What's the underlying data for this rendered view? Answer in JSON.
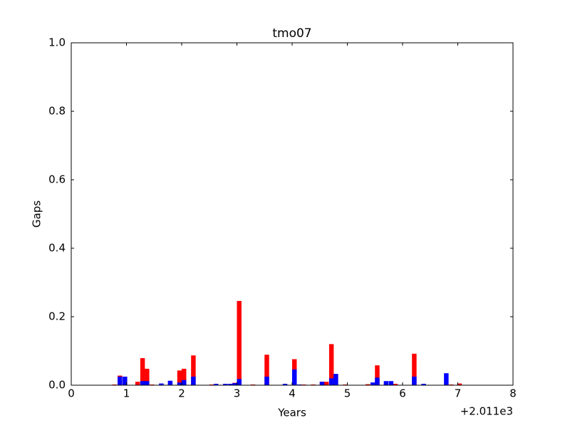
{
  "chart_data": {
    "type": "bar",
    "title": "tmo07",
    "xlabel": "Years",
    "ylabel": "Gaps",
    "x_offset_label": "+2.011e3",
    "x": [
      0.74,
      0.84,
      0.93,
      1.16,
      1.25,
      1.33,
      1.42,
      1.59,
      1.75,
      1.92,
      2.0,
      2.17,
      2.5,
      2.58,
      2.75,
      2.84,
      2.92,
      3.0,
      3.25,
      3.5,
      3.83,
      4.0,
      4.09,
      4.17,
      4.34,
      4.5,
      4.58,
      4.67,
      4.75,
      4.92,
      5.33,
      5.42,
      5.5,
      5.66,
      5.75,
      5.83,
      6.17,
      6.34,
      6.75,
      6.84,
      6.99
    ],
    "series": [
      {
        "color": "#ff0000",
        "values": [
          0.002,
          0.028,
          0.025,
          0.01,
          0.079,
          0.048,
          0.002,
          0,
          0,
          0.043,
          0.048,
          0.087,
          0.002,
          0,
          0.003,
          0,
          0.007,
          0.246,
          0.002,
          0.089,
          0,
          0.076,
          0,
          0.002,
          0.002,
          0.01,
          0.01,
          0.12,
          0.03,
          0.002,
          0.003,
          0,
          0.058,
          0,
          0,
          0.004,
          0.092,
          0,
          0,
          0.002,
          0.005
        ]
      },
      {
        "color": "#0000ff",
        "values": [
          0,
          0.025,
          0.025,
          0,
          0.012,
          0.012,
          0,
          0.005,
          0.013,
          0.008,
          0.015,
          0.025,
          0,
          0.004,
          0.004,
          0.004,
          0.006,
          0.018,
          0,
          0.025,
          0.004,
          0.046,
          0.002,
          0,
          0,
          0.01,
          0,
          0.02,
          0.033,
          0,
          0,
          0.008,
          0.022,
          0.012,
          0.012,
          0,
          0.025,
          0.004,
          0.035,
          0,
          0
        ]
      }
    ],
    "xlim": [
      0,
      8
    ],
    "ylim": [
      0,
      1
    ],
    "xticks": [
      0,
      1,
      2,
      3,
      4,
      5,
      6,
      7,
      8
    ],
    "yticks": [
      {
        "value": 0,
        "label": "0.0"
      },
      0.2,
      0.4,
      0.6,
      0.8,
      {
        "value": 1,
        "label": "1.0"
      }
    ]
  }
}
